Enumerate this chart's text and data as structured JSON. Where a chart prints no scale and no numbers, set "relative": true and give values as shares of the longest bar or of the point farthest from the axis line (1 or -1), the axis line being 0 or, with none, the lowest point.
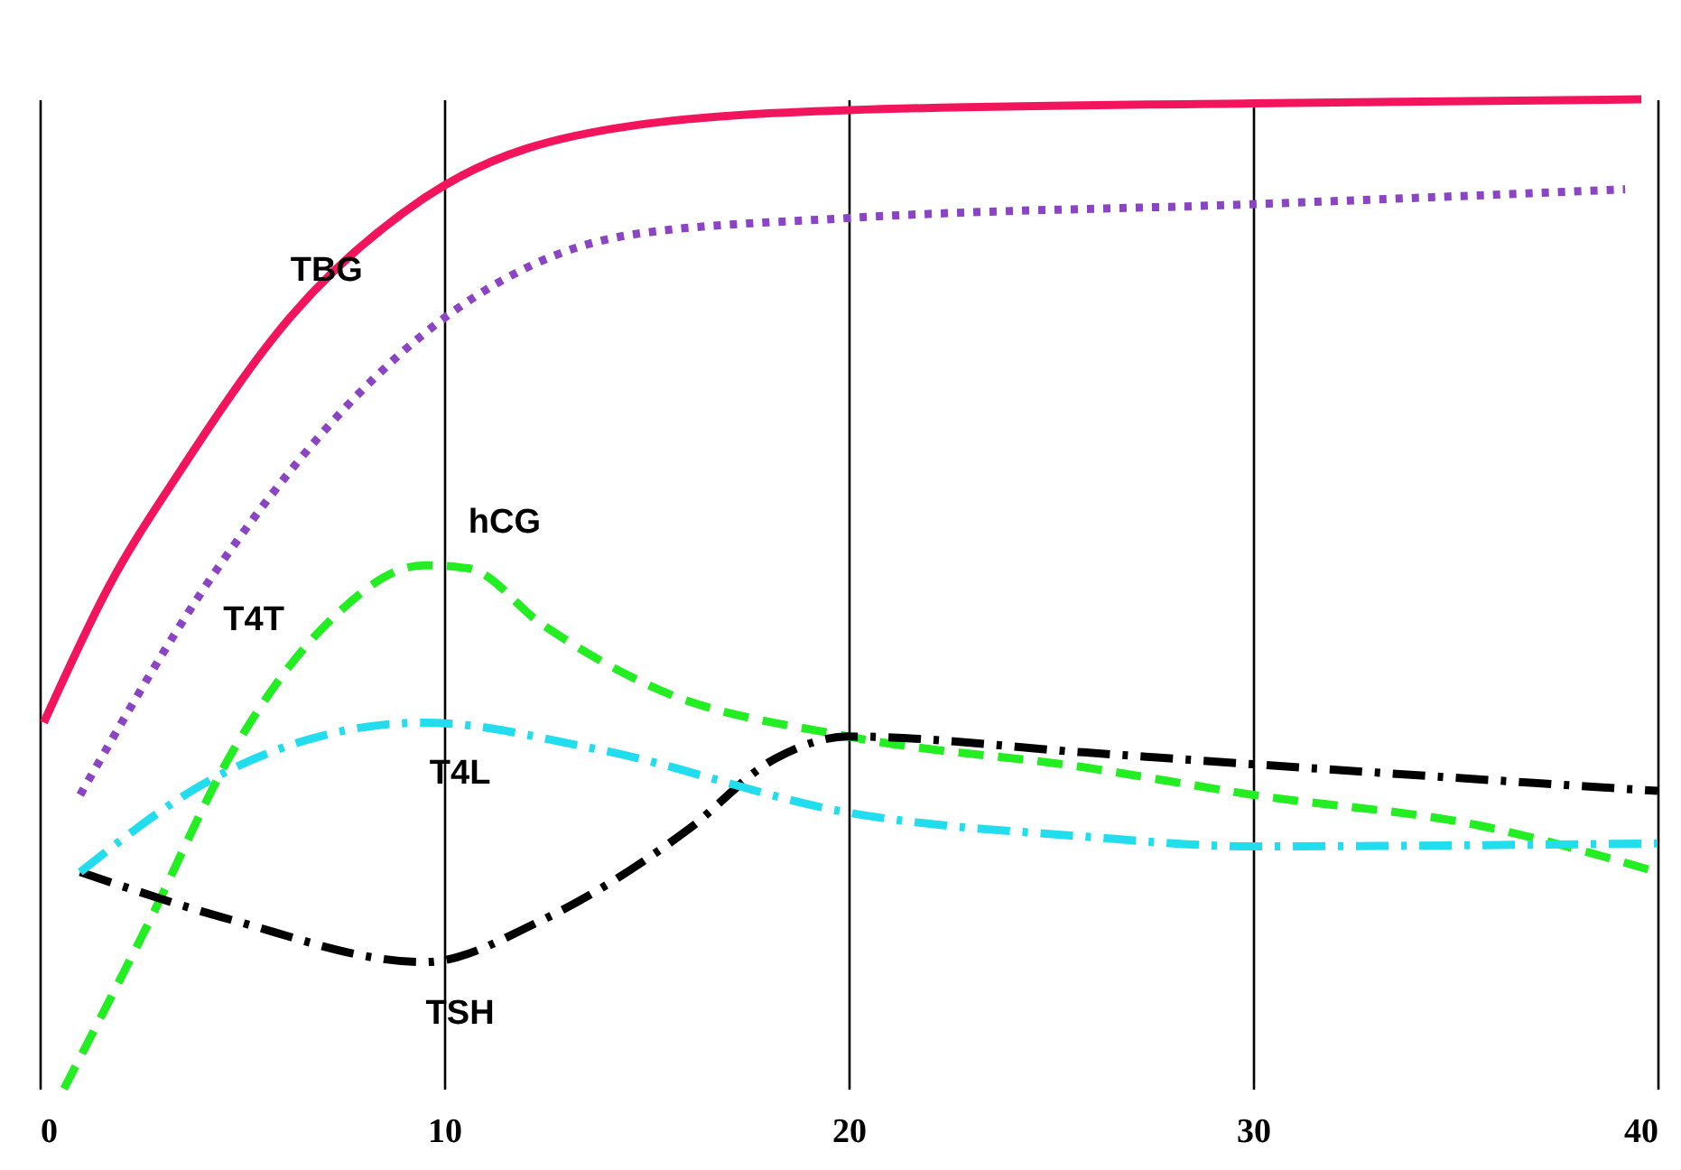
{
  "chart_data": {
    "type": "line",
    "relative": true,
    "xlim": [
      0,
      40
    ],
    "xticks": [
      0,
      10,
      20,
      30,
      40
    ],
    "grid": "x",
    "marker": "none",
    "series": [
      {
        "name": "TBG",
        "color": "#f2145c",
        "line_style": "solid",
        "x": [
          0.1,
          1.7,
          3.5,
          6.2,
          9.5,
          14.6,
          20,
          30,
          39.6
        ],
        "values": [
          0.37,
          0.507,
          0.626,
          0.78,
          0.9,
          0.973,
          0.989,
          0.996,
          1
        ]
      },
      {
        "name": "T4T",
        "color": "#8a44c4",
        "line_style": "dotted",
        "x": [
          1.0,
          4.4,
          9.5,
          14.6,
          20,
          30,
          39.2
        ],
        "values": [
          0.297,
          0.526,
          0.763,
          0.863,
          0.88,
          0.894,
          0.909
        ]
      },
      {
        "name": "hCG",
        "color": "#22ee22",
        "line_style": "dashed",
        "x": [
          0.6,
          2.6,
          4.8,
          7.1,
          9.5,
          10.6,
          12.4,
          15.1,
          20,
          25.8,
          30,
          35.6,
          40
        ],
        "values": [
          0,
          0.16,
          0.343,
          0.47,
          0.529,
          0.526,
          0.47,
          0.407,
          0.356,
          0.325,
          0.297,
          0.266,
          0.219
        ]
      },
      {
        "name": "TSH",
        "color": "#000000",
        "line_style": "dashdot",
        "x": [
          1.0,
          4.8,
          9.5,
          12.4,
          16,
          18.2,
          20,
          25.8,
          30,
          40
        ],
        "values": [
          0.219,
          0.17,
          0.128,
          0.17,
          0.261,
          0.334,
          0.356,
          0.34,
          0.328,
          0.301
        ]
      },
      {
        "name": "T4L",
        "color": "#22ddee",
        "line_style": "dashdot",
        "x": [
          1.0,
          4.4,
          9.5,
          13.8,
          20,
          25.8,
          30,
          40
        ],
        "values": [
          0.219,
          0.316,
          0.37,
          0.343,
          0.279,
          0.255,
          0.245,
          0.248
        ]
      }
    ]
  }
}
